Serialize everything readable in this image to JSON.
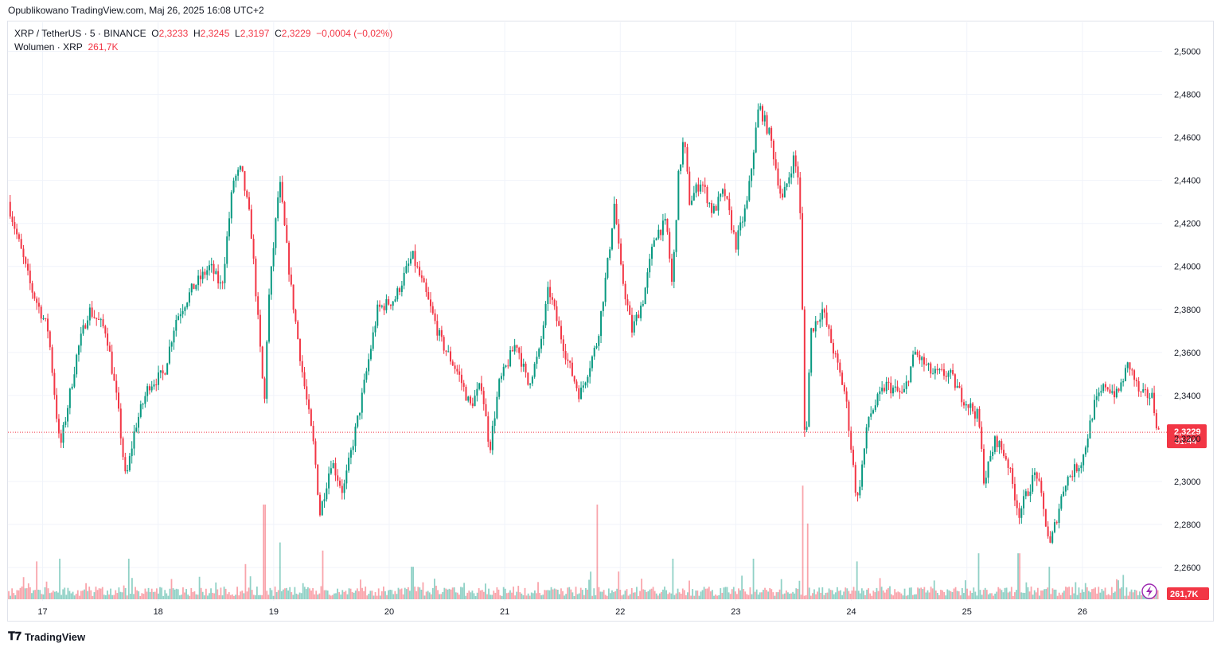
{
  "header": {
    "published": "Opublikowano TradingView.com, Maj 26, 2025 16:08 UTC+2"
  },
  "legend": {
    "symbol": "XRP / TetherUS · 5 · BINANCE",
    "o_label": "O",
    "o_value": "2,3233",
    "h_label": "H",
    "h_value": "2,3245",
    "l_label": "L",
    "l_value": "2,3197",
    "c_label": "C",
    "c_value": "2,3229",
    "change": "−0,0004 (−0,02%)",
    "volume_label": "Wolumen · XRP",
    "volume_value": "261,7K"
  },
  "colors": {
    "up": "#089981",
    "down": "#f23645",
    "grid": "#f0f3fa",
    "axis_text": "#131722"
  },
  "footer": {
    "brand": "TradingView",
    "brand_icon": "tradingview-logo-icon"
  },
  "chart_data": {
    "type": "candlestick",
    "symbol": "XRP / TetherUS",
    "interval": "5",
    "exchange": "BINANCE",
    "x_ticks": [
      "17",
      "18",
      "19",
      "20",
      "21",
      "22",
      "23",
      "24",
      "25",
      "26"
    ],
    "y_ticks": [
      "2,5000",
      "2,4800",
      "2,4600",
      "2,4400",
      "2,4200",
      "2,4000",
      "2,3800",
      "2,3600",
      "2,3400",
      "2,3200",
      "2,3000",
      "2,2800",
      "2,2600"
    ],
    "ylim": [
      2.2445,
      2.5135
    ],
    "last_price": {
      "value": 2.3229,
      "label": "2,3229",
      "countdown": "01:44"
    },
    "last_volume_label": "261,7K",
    "price_path": [
      [
        16.7,
        2.43
      ],
      [
        16.8,
        2.41
      ],
      [
        16.9,
        2.39
      ],
      [
        17.05,
        2.37
      ],
      [
        17.15,
        2.315
      ],
      [
        17.3,
        2.36
      ],
      [
        17.4,
        2.38
      ],
      [
        17.55,
        2.37
      ],
      [
        17.65,
        2.335
      ],
      [
        17.72,
        2.3
      ],
      [
        17.8,
        2.325
      ],
      [
        17.92,
        2.345
      ],
      [
        18.05,
        2.35
      ],
      [
        18.15,
        2.375
      ],
      [
        18.3,
        2.39
      ],
      [
        18.45,
        2.4
      ],
      [
        18.55,
        2.39
      ],
      [
        18.65,
        2.44
      ],
      [
        18.72,
        2.445
      ],
      [
        18.8,
        2.42
      ],
      [
        18.85,
        2.385
      ],
      [
        18.92,
        2.335
      ],
      [
        18.95,
        2.38
      ],
      [
        19.05,
        2.44
      ],
      [
        19.15,
        2.39
      ],
      [
        19.25,
        2.35
      ],
      [
        19.35,
        2.315
      ],
      [
        19.4,
        2.285
      ],
      [
        19.5,
        2.31
      ],
      [
        19.6,
        2.295
      ],
      [
        19.75,
        2.335
      ],
      [
        19.9,
        2.38
      ],
      [
        20.05,
        2.385
      ],
      [
        20.2,
        2.405
      ],
      [
        20.3,
        2.39
      ],
      [
        20.45,
        2.365
      ],
      [
        20.6,
        2.35
      ],
      [
        20.7,
        2.335
      ],
      [
        20.8,
        2.345
      ],
      [
        20.87,
        2.315
      ],
      [
        20.95,
        2.345
      ],
      [
        21.1,
        2.365
      ],
      [
        21.2,
        2.345
      ],
      [
        21.3,
        2.36
      ],
      [
        21.38,
        2.39
      ],
      [
        21.45,
        2.375
      ],
      [
        21.55,
        2.355
      ],
      [
        21.65,
        2.34
      ],
      [
        21.8,
        2.365
      ],
      [
        21.9,
        2.405
      ],
      [
        21.95,
        2.43
      ],
      [
        22.0,
        2.4
      ],
      [
        22.1,
        2.37
      ],
      [
        22.2,
        2.385
      ],
      [
        22.3,
        2.415
      ],
      [
        22.4,
        2.42
      ],
      [
        22.45,
        2.39
      ],
      [
        22.5,
        2.44
      ],
      [
        22.55,
        2.46
      ],
      [
        22.6,
        2.43
      ],
      [
        22.7,
        2.44
      ],
      [
        22.8,
        2.425
      ],
      [
        22.9,
        2.435
      ],
      [
        23.0,
        2.41
      ],
      [
        23.1,
        2.43
      ],
      [
        23.2,
        2.475
      ],
      [
        23.3,
        2.46
      ],
      [
        23.4,
        2.43
      ],
      [
        23.5,
        2.45
      ],
      [
        23.55,
        2.44
      ],
      [
        23.58,
        2.37
      ],
      [
        23.6,
        2.31
      ],
      [
        23.65,
        2.37
      ],
      [
        23.75,
        2.38
      ],
      [
        23.85,
        2.36
      ],
      [
        23.95,
        2.34
      ],
      [
        24.0,
        2.315
      ],
      [
        24.05,
        2.29
      ],
      [
        24.15,
        2.33
      ],
      [
        24.3,
        2.345
      ],
      [
        24.45,
        2.34
      ],
      [
        24.55,
        2.36
      ],
      [
        24.7,
        2.35
      ],
      [
        24.85,
        2.35
      ],
      [
        24.95,
        2.34
      ],
      [
        25.1,
        2.33
      ],
      [
        25.15,
        2.3
      ],
      [
        25.25,
        2.32
      ],
      [
        25.35,
        2.31
      ],
      [
        25.45,
        2.285
      ],
      [
        25.6,
        2.305
      ],
      [
        25.72,
        2.27
      ],
      [
        25.85,
        2.3
      ],
      [
        26.0,
        2.31
      ],
      [
        26.1,
        2.335
      ],
      [
        26.2,
        2.345
      ],
      [
        26.3,
        2.34
      ],
      [
        26.4,
        2.355
      ],
      [
        26.5,
        2.34
      ],
      [
        26.6,
        2.34
      ],
      [
        26.65,
        2.325
      ],
      [
        26.66,
        2.3229
      ]
    ],
    "volume_spikes": [
      [
        16.95,
        28
      ],
      [
        17.15,
        30
      ],
      [
        17.75,
        30
      ],
      [
        18.75,
        26
      ],
      [
        18.92,
        70
      ],
      [
        19.05,
        42
      ],
      [
        19.42,
        36
      ],
      [
        20.2,
        24
      ],
      [
        21.8,
        70
      ],
      [
        22.45,
        30
      ],
      [
        23.15,
        30
      ],
      [
        23.58,
        84
      ],
      [
        23.62,
        56
      ],
      [
        24.05,
        28
      ],
      [
        25.1,
        34
      ],
      [
        25.45,
        34
      ],
      [
        25.72,
        24
      ],
      [
        26.35,
        18
      ]
    ]
  }
}
